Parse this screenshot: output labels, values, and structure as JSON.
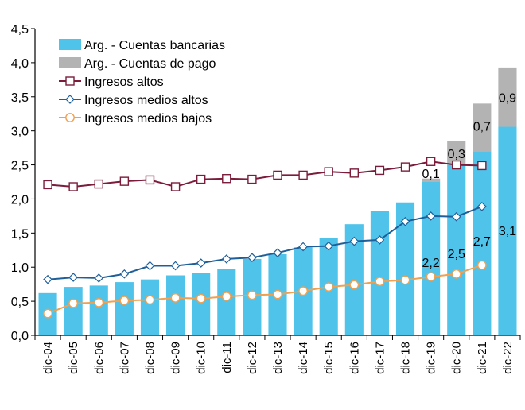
{
  "chart_data": {
    "type": "bar",
    "categories": [
      "dic-04",
      "dic-05",
      "dic-06",
      "dic-07",
      "dic-08",
      "dic-09",
      "dic-10",
      "dic-11",
      "dic-12",
      "dic-13",
      "dic-14",
      "dic-15",
      "dic-16",
      "dic-17",
      "dic-18",
      "dic-19",
      "dic-20",
      "dic-21",
      "dic-22"
    ],
    "ylim": [
      0,
      4.5
    ],
    "yticks": [
      "0,0",
      "0,5",
      "1,0",
      "1,5",
      "2,0",
      "2,5",
      "3,0",
      "3,5",
      "4,0",
      "4,5"
    ],
    "grid": false,
    "legend_position": "top-left",
    "bar_series": [
      {
        "name": "Arg. - Cuentas bancarias",
        "color": "#4fc3ea",
        "values": [
          0.62,
          0.71,
          0.73,
          0.78,
          0.82,
          0.88,
          0.92,
          0.97,
          1.12,
          1.19,
          1.29,
          1.43,
          1.63,
          1.82,
          1.95,
          2.25,
          2.5,
          2.7,
          3.06
        ]
      },
      {
        "name": "Arg. - Cuentas de pago",
        "color": "#b3b3b3",
        "values": [
          0,
          0,
          0,
          0,
          0,
          0,
          0,
          0,
          0,
          0,
          0,
          0,
          0,
          0,
          0,
          0.05,
          0.35,
          0.7,
          0.87
        ]
      }
    ],
    "line_series": [
      {
        "name": "Ingresos altos",
        "color": "#7b1c3a",
        "marker": "square",
        "values": [
          2.21,
          2.18,
          2.22,
          2.26,
          2.28,
          2.18,
          2.29,
          2.3,
          2.29,
          2.35,
          2.35,
          2.4,
          2.38,
          2.42,
          2.47,
          2.55,
          2.5,
          2.49,
          null
        ]
      },
      {
        "name": "Ingresos medios altos",
        "color": "#1f5f99",
        "marker": "diamond",
        "values": [
          0.82,
          0.85,
          0.84,
          0.9,
          1.02,
          1.02,
          1.06,
          1.12,
          1.14,
          1.21,
          1.3,
          1.31,
          1.38,
          1.4,
          1.67,
          1.75,
          1.74,
          1.89,
          null
        ]
      },
      {
        "name": "Ingresos medios bajos",
        "color": "#f0a050",
        "marker": "circle",
        "values": [
          0.32,
          0.47,
          0.48,
          0.51,
          0.52,
          0.55,
          0.54,
          0.57,
          0.59,
          0.6,
          0.65,
          0.71,
          0.74,
          0.79,
          0.81,
          0.86,
          0.9,
          1.03,
          null
        ]
      }
    ],
    "annotations": [
      {
        "text": "0,1",
        "x": "dic-19",
        "y": 2.38
      },
      {
        "text": "0,3",
        "x": "dic-20",
        "y": 2.67
      },
      {
        "text": "0,7",
        "x": "dic-21",
        "y": 3.07
      },
      {
        "text": "0,9",
        "x": "dic-22",
        "y": 3.49
      },
      {
        "text": "2,2",
        "x": "dic-19",
        "y": 1.07
      },
      {
        "text": "2,5",
        "x": "dic-20",
        "y": 1.2
      },
      {
        "text": "2,7",
        "x": "dic-21",
        "y": 1.39
      },
      {
        "text": "3,1",
        "x": "dic-22",
        "y": 1.54
      }
    ]
  }
}
